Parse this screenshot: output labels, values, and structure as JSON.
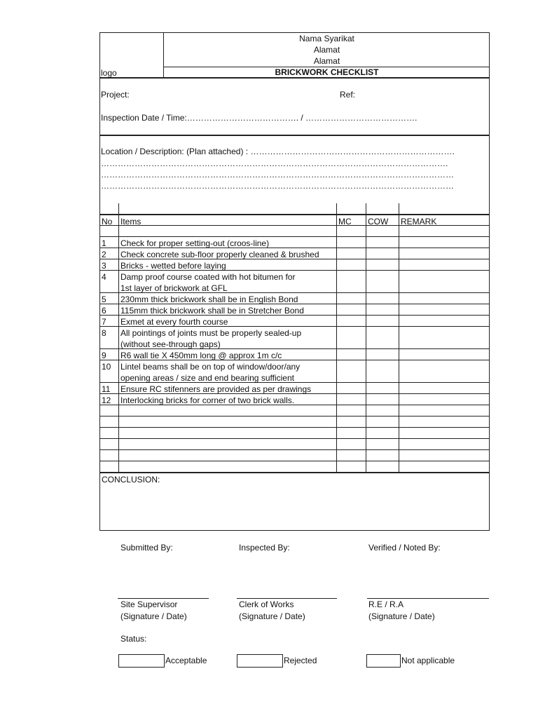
{
  "header": {
    "logo_label": "logo",
    "company_name": "Nama Syarikat",
    "address_line1": "Alamat",
    "address_line2": "Alamat",
    "title": "BRICKWORK CHECKLIST"
  },
  "info": {
    "project_label": "Project:",
    "ref_label": "Ref:",
    "inspection_label": "Inspection Date / Time:…………………………………. / …………………………………."
  },
  "location": {
    "label": "Location / Description: (Plan attached) : ……………………………………………………………….",
    "lines": [
      "…………………………………………………………………………………………………………….",
      "………………………………………………………………………………………………………………",
      "………………………………………………………………………………………………………………"
    ]
  },
  "table": {
    "columns": [
      "No",
      "Items",
      "MC",
      "COW",
      "REMARK"
    ],
    "rows": [
      {
        "no": "1",
        "lines": [
          "Check for proper setting-out (croos-line)"
        ]
      },
      {
        "no": "2",
        "lines": [
          "Check concrete sub-floor properly cleaned & brushed"
        ]
      },
      {
        "no": "3",
        "lines": [
          "Bricks - wetted before laying"
        ]
      },
      {
        "no": "4",
        "lines": [
          "Damp proof course coated with hot bitumen for",
          "1st layer of brickwork at GFL"
        ]
      },
      {
        "no": "5",
        "lines": [
          "230mm thick brickwork shall be in English Bond"
        ]
      },
      {
        "no": "6",
        "lines": [
          "115mm thick brickwork shall be in Stretcher Bond"
        ]
      },
      {
        "no": "7",
        "lines": [
          "Exmet at every fourth course"
        ]
      },
      {
        "no": "8",
        "lines": [
          "All pointings of joints must be properly sealed-up",
          "(without see-through gaps)"
        ]
      },
      {
        "no": "9",
        "lines": [
          "R6 wall tie X 450mm long @ approx 1m c/c"
        ]
      },
      {
        "no": "10",
        "lines": [
          "Lintel beams shall be on top of window/door/any",
          "opening areas / size and end bearing sufficient"
        ]
      },
      {
        "no": "11",
        "lines": [
          "Ensure RC stifenners are provided as per drawings"
        ]
      },
      {
        "no": "12",
        "lines": [
          "Interlocking bricks for corner of two brick walls."
        ]
      }
    ],
    "empty_rows_after": 6
  },
  "conclusion_label": "CONCLUSION:",
  "signatures": [
    {
      "heading": "Submitted By:",
      "role": "Site Supervisor",
      "note": "(Signature / Date)"
    },
    {
      "heading": "Inspected By:",
      "role": "Clerk of Works",
      "note": "(Signature / Date)"
    },
    {
      "heading": "Verified / Noted By:",
      "role": "R.E / R.A",
      "note": "(Signature / Date)"
    }
  ],
  "status": {
    "label": "Status:",
    "options": [
      "Acceptable",
      "Rejected",
      "Not applicable"
    ]
  }
}
